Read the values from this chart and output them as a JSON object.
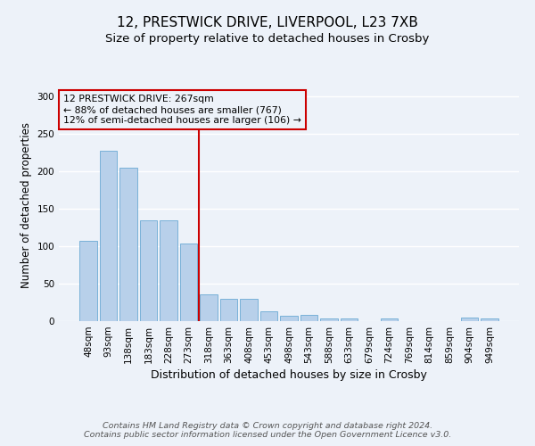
{
  "title1": "12, PRESTWICK DRIVE, LIVERPOOL, L23 7XB",
  "title2": "Size of property relative to detached houses in Crosby",
  "xlabel": "Distribution of detached houses by size in Crosby",
  "ylabel": "Number of detached properties",
  "categories": [
    "48sqm",
    "93sqm",
    "138sqm",
    "183sqm",
    "228sqm",
    "273sqm",
    "318sqm",
    "363sqm",
    "408sqm",
    "453sqm",
    "498sqm",
    "543sqm",
    "588sqm",
    "633sqm",
    "679sqm",
    "724sqm",
    "769sqm",
    "814sqm",
    "859sqm",
    "904sqm",
    "949sqm"
  ],
  "values": [
    107,
    228,
    205,
    135,
    135,
    104,
    36,
    30,
    30,
    13,
    7,
    8,
    4,
    4,
    0,
    3,
    0,
    0,
    0,
    5,
    4
  ],
  "bar_color": "#b8d0ea",
  "bar_edge_color": "#6aaad4",
  "vline_x": 5.5,
  "vline_color": "#cc0000",
  "annotation_text": "12 PRESTWICK DRIVE: 267sqm\n← 88% of detached houses are smaller (767)\n12% of semi-detached houses are larger (106) →",
  "annotation_box_color": "#cc0000",
  "ylim": [
    0,
    310
  ],
  "yticks": [
    0,
    50,
    100,
    150,
    200,
    250,
    300
  ],
  "footer_text": "Contains HM Land Registry data © Crown copyright and database right 2024.\nContains public sector information licensed under the Open Government Licence v3.0.",
  "bg_color": "#edf2f9",
  "grid_color": "#ffffff",
  "title1_fontsize": 11,
  "title2_fontsize": 9.5,
  "xlabel_fontsize": 9,
  "ylabel_fontsize": 8.5,
  "tick_fontsize": 7.5,
  "annotation_fontsize": 7.8,
  "footer_fontsize": 6.8
}
